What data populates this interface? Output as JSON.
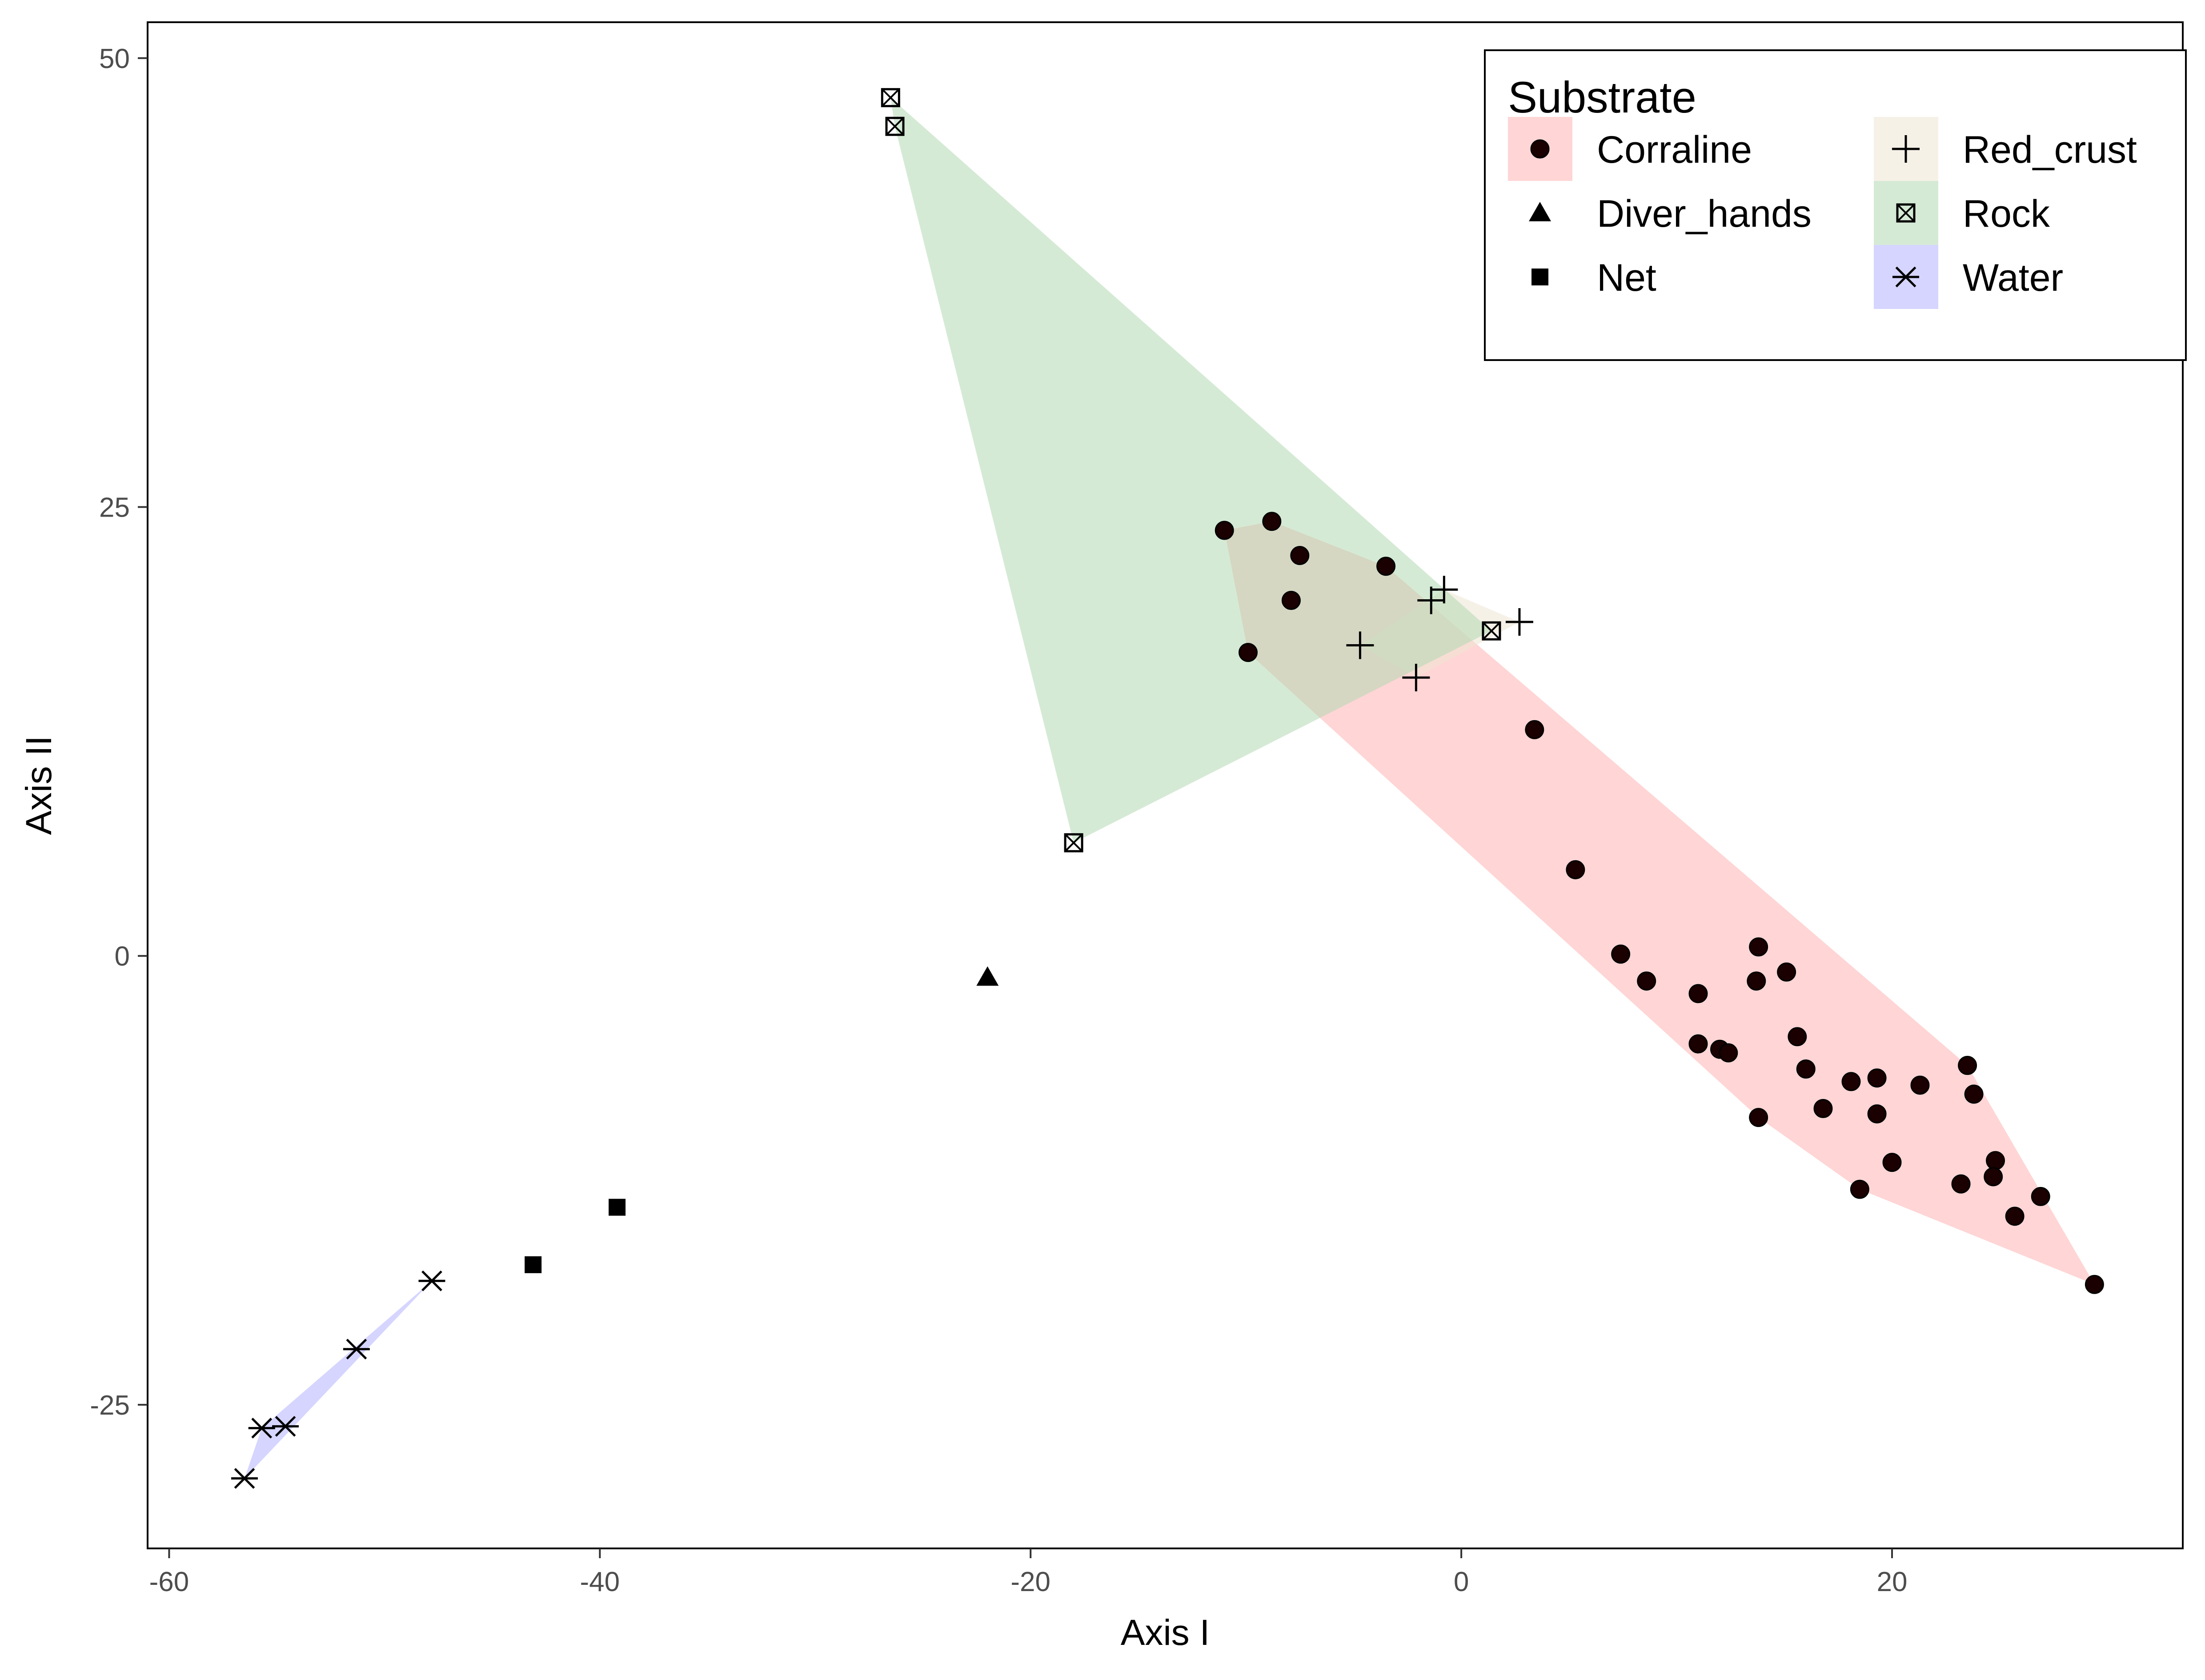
{
  "chart_data": {
    "type": "scatter",
    "title": "",
    "xlabel": "Axis I",
    "ylabel": "Axis II",
    "xlim": [
      -61,
      33.5
    ],
    "ylim": [
      -33,
      52
    ],
    "x_ticks": [
      -60,
      -40,
      -20,
      0,
      20
    ],
    "y_ticks": [
      -25,
      0,
      25,
      50
    ],
    "grid": false,
    "legend": {
      "title": "Substrate",
      "position": "top-right",
      "columns": 2
    },
    "hulls": true,
    "series": [
      {
        "name": "Corraline",
        "marker": "circle",
        "fill": "#FFB3B3",
        "points": [
          [
            -11.0,
            23.7
          ],
          [
            -8.8,
            24.2
          ],
          [
            -7.5,
            22.3
          ],
          [
            -3.5,
            21.7
          ],
          [
            -7.9,
            19.8
          ],
          [
            -9.9,
            16.9
          ],
          [
            3.4,
            12.6
          ],
          [
            5.3,
            4.8
          ],
          [
            7.4,
            0.1
          ],
          [
            8.6,
            -1.4
          ],
          [
            13.8,
            0.5
          ],
          [
            15.1,
            -0.9
          ],
          [
            13.7,
            -1.4
          ],
          [
            11.0,
            -2.1
          ],
          [
            11.0,
            -4.9
          ],
          [
            12.0,
            -5.2
          ],
          [
            12.4,
            -5.4
          ],
          [
            15.6,
            -4.5
          ],
          [
            16.0,
            -6.3
          ],
          [
            18.1,
            -7.0
          ],
          [
            19.3,
            -6.8
          ],
          [
            16.8,
            -8.5
          ],
          [
            13.8,
            -9.0
          ],
          [
            19.3,
            -8.8
          ],
          [
            21.3,
            -7.2
          ],
          [
            23.5,
            -6.1
          ],
          [
            23.8,
            -7.7
          ],
          [
            24.8,
            -11.4
          ],
          [
            24.7,
            -12.3
          ],
          [
            20.0,
            -11.5
          ],
          [
            23.2,
            -12.7
          ],
          [
            26.9,
            -13.4
          ],
          [
            18.5,
            -13.0
          ],
          [
            25.7,
            -14.5
          ],
          [
            29.4,
            -18.3
          ]
        ]
      },
      {
        "name": "Diver_hands",
        "marker": "triangle",
        "fill": "#FFFFFF",
        "points": [
          [
            -22.0,
            -1.2
          ]
        ]
      },
      {
        "name": "Net",
        "marker": "square",
        "fill": "#FFFFFF",
        "points": [
          [
            -39.2,
            -14.0
          ],
          [
            -43.1,
            -17.2
          ]
        ]
      },
      {
        "name": "Red_crust",
        "marker": "plus",
        "fill": "#EEE6D3",
        "points": [
          [
            -0.8,
            20.4
          ],
          [
            -1.4,
            19.8
          ],
          [
            2.7,
            18.6
          ],
          [
            -4.7,
            17.3
          ],
          [
            -2.1,
            15.5
          ]
        ]
      },
      {
        "name": "Rock",
        "marker": "boxx",
        "fill": "#B3D9B3",
        "points": [
          [
            -26.5,
            47.8
          ],
          [
            -26.3,
            46.2
          ],
          [
            1.4,
            18.1
          ],
          [
            -18.0,
            6.3
          ]
        ]
      },
      {
        "name": "Water",
        "marker": "asterisk",
        "fill": "#B3B3FF",
        "points": [
          [
            -47.8,
            -18.1
          ],
          [
            -51.3,
            -21.9
          ],
          [
            -54.6,
            -26.2
          ],
          [
            -55.7,
            -26.3
          ],
          [
            -56.5,
            -29.1
          ]
        ]
      }
    ]
  }
}
